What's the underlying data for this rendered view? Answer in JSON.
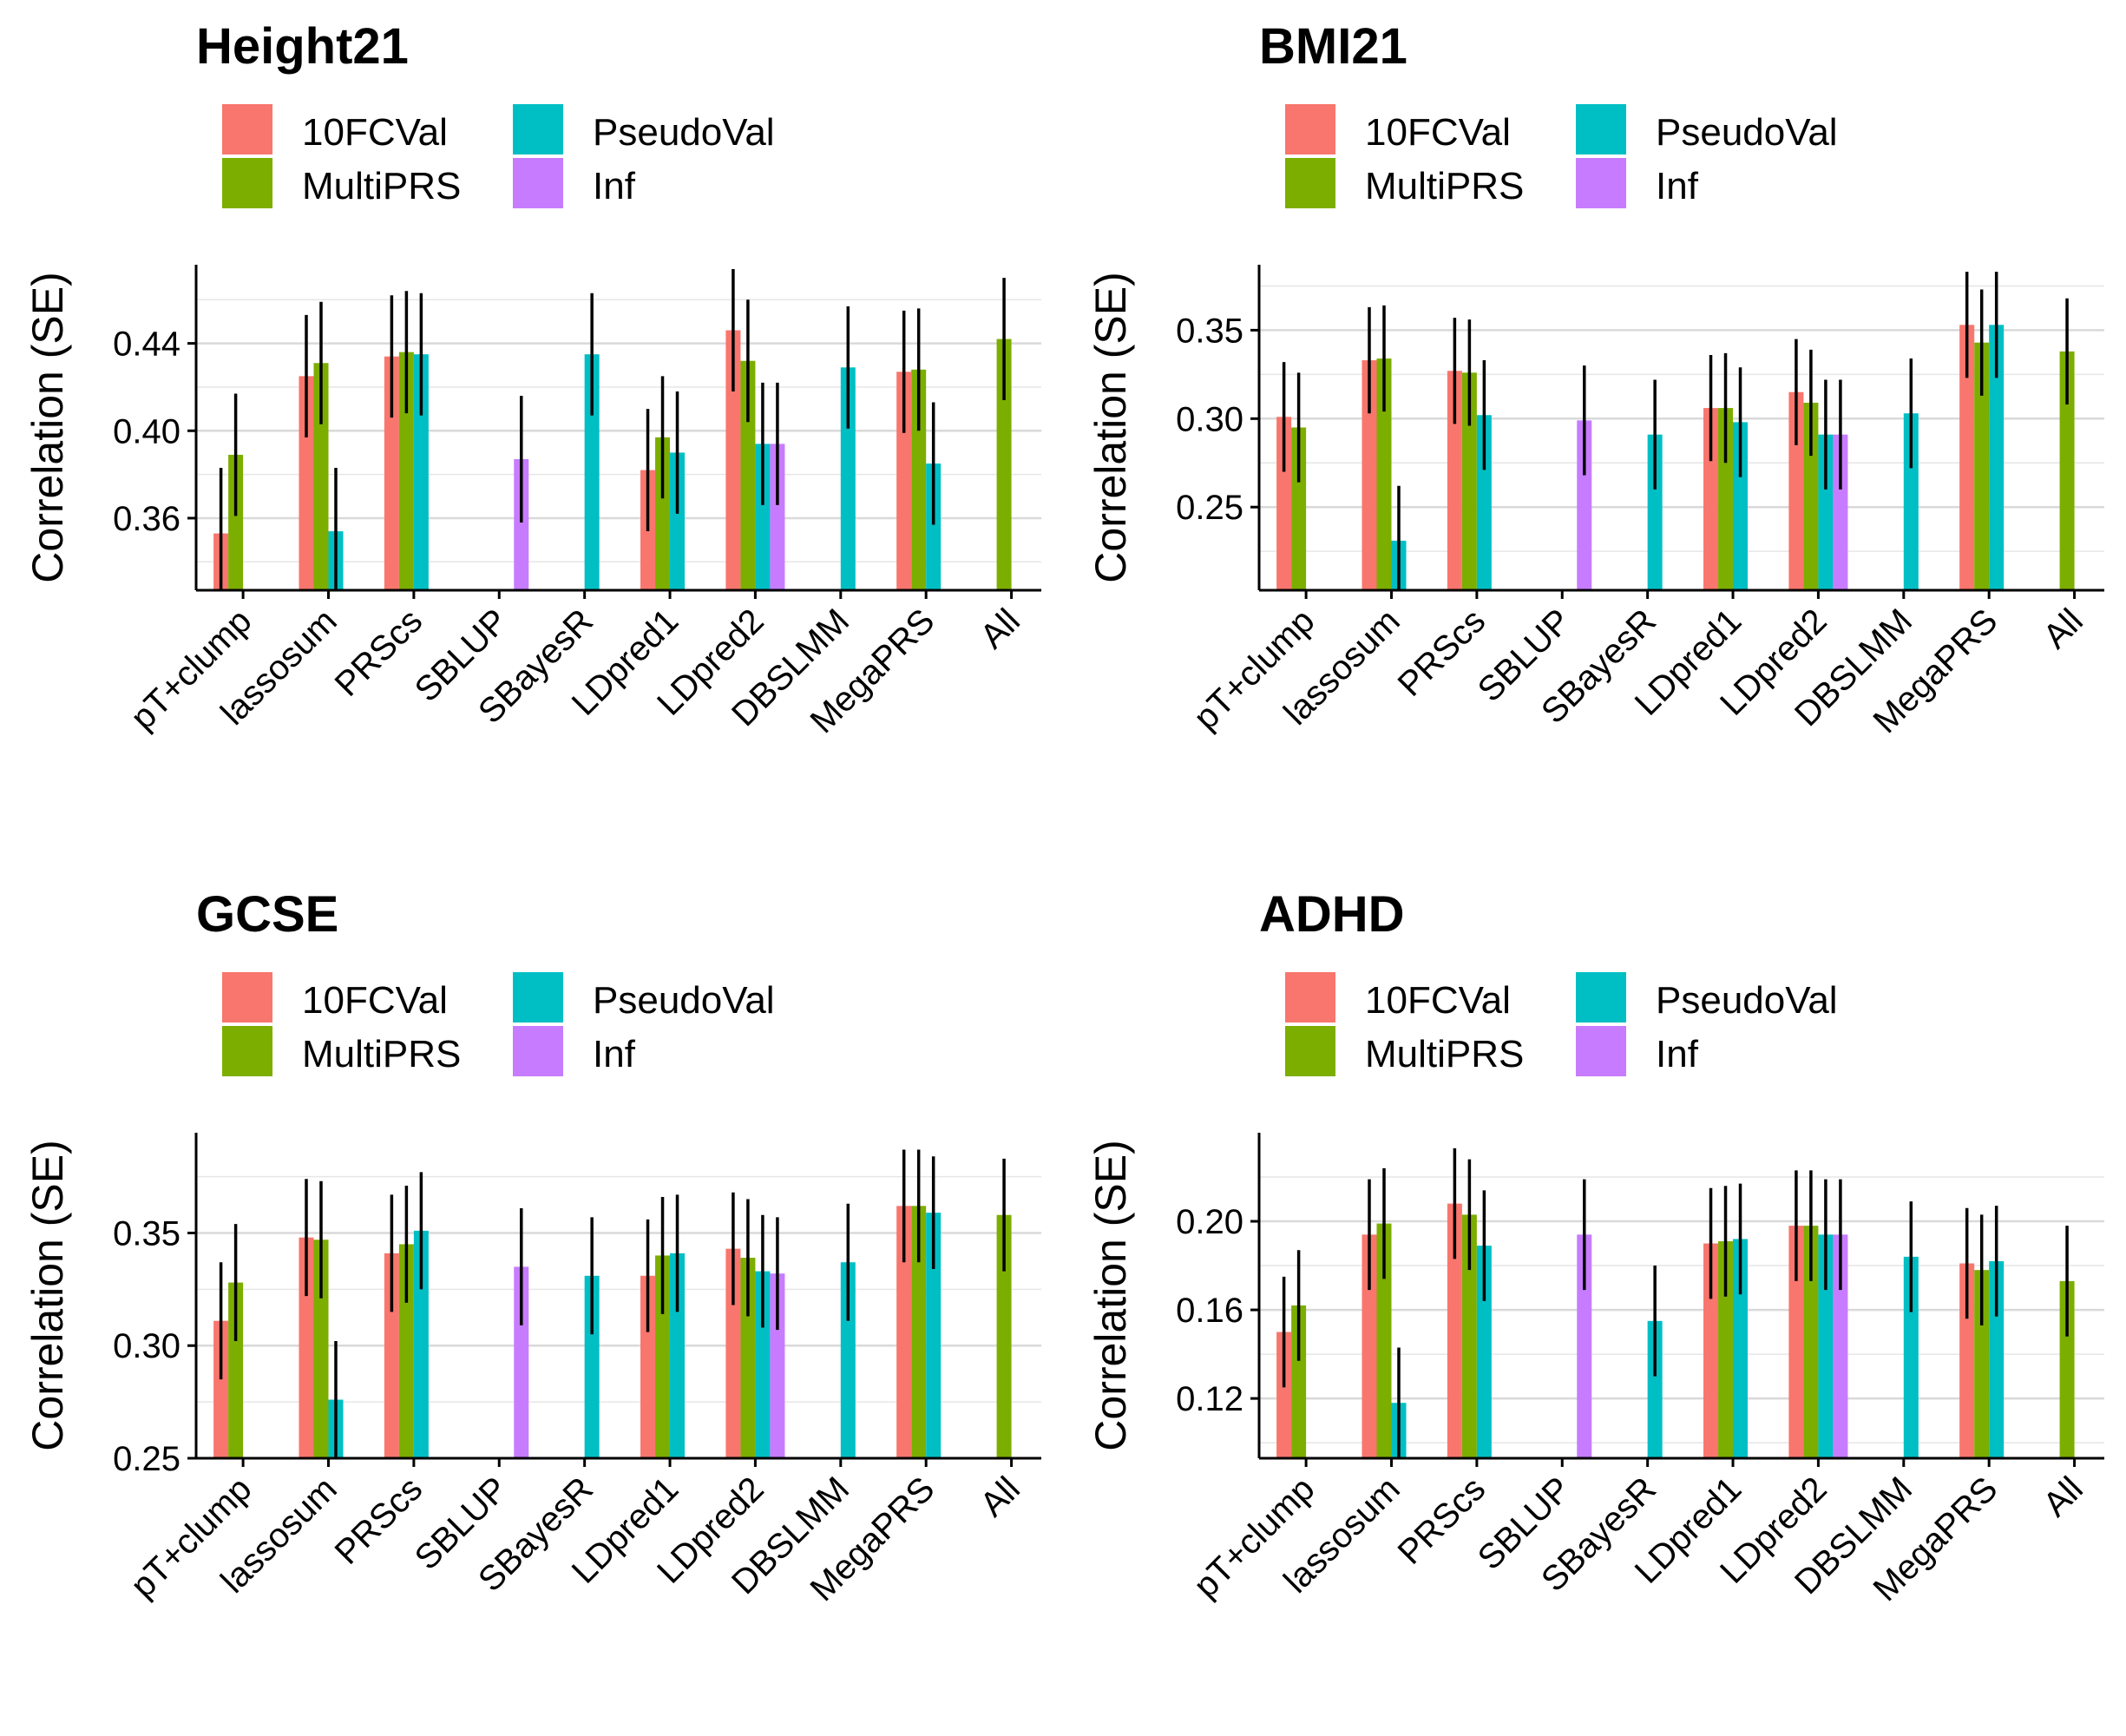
{
  "figure": {
    "colors": {
      "10FCVal": "#F8766D",
      "MultiPRS": "#7CAE00",
      "PseudoVal": "#00BFC4",
      "Inf": "#C77CFF"
    },
    "legend": [
      "10FCVal",
      "MultiPRS",
      "PseudoVal",
      "Inf"
    ]
  },
  "chart_data": [
    {
      "type": "bar",
      "title": "Height21",
      "xlabel": "",
      "ylabel": "Correlation (SE)",
      "ylim": [
        0.327,
        0.476
      ],
      "yticks": [
        "0.36",
        "0.40",
        "0.44"
      ],
      "ytick_values": [
        0.36,
        0.4,
        0.44
      ],
      "minor_gridlines": [
        0.34,
        0.38,
        0.42,
        0.46
      ],
      "categories": [
        "pT+clump",
        "lassosum",
        "PRScs",
        "SBLUP",
        "SBayesR",
        "LDpred1",
        "LDpred2",
        "DBSLMM",
        "MegaPRS",
        "All"
      ],
      "series": [
        {
          "name": "10FCVal",
          "values": [
            0.353,
            0.425,
            0.434,
            null,
            null,
            0.382,
            0.446,
            null,
            0.427,
            null
          ],
          "se": [
            0.03,
            0.028,
            0.028,
            null,
            null,
            0.028,
            0.028,
            null,
            0.028,
            null
          ]
        },
        {
          "name": "MultiPRS",
          "values": [
            0.389,
            0.431,
            0.436,
            null,
            null,
            0.397,
            0.432,
            null,
            0.428,
            0.442
          ],
          "se": [
            0.028,
            0.028,
            0.028,
            null,
            null,
            0.028,
            0.028,
            null,
            0.028,
            0.028
          ]
        },
        {
          "name": "PseudoVal",
          "values": [
            null,
            0.354,
            0.435,
            null,
            0.435,
            0.39,
            0.394,
            0.429,
            0.385,
            null
          ],
          "se": [
            null,
            0.029,
            0.028,
            null,
            0.028,
            0.028,
            0.028,
            0.028,
            0.028,
            null
          ]
        },
        {
          "name": "Inf",
          "values": [
            null,
            null,
            null,
            0.387,
            null,
            null,
            0.394,
            null,
            null,
            null
          ],
          "se": [
            null,
            null,
            null,
            0.029,
            null,
            null,
            0.028,
            null,
            null,
            null
          ]
        }
      ]
    },
    {
      "type": "bar",
      "title": "BMI21",
      "xlabel": "",
      "ylabel": "Correlation (SE)",
      "ylim": [
        0.203,
        0.387
      ],
      "yticks": [
        "0.25",
        "0.30",
        "0.35"
      ],
      "ytick_values": [
        0.25,
        0.3,
        0.35
      ],
      "minor_gridlines": [
        0.225,
        0.275,
        0.325,
        0.375
      ],
      "categories": [
        "pT+clump",
        "lassosum",
        "PRScs",
        "SBLUP",
        "SBayesR",
        "LDpred1",
        "LDpred2",
        "DBSLMM",
        "MegaPRS",
        "All"
      ],
      "series": [
        {
          "name": "10FCVal",
          "values": [
            0.301,
            0.333,
            0.327,
            null,
            null,
            0.306,
            0.315,
            null,
            0.353,
            null
          ],
          "se": [
            0.031,
            0.03,
            0.03,
            null,
            null,
            0.03,
            0.03,
            null,
            0.03,
            null
          ]
        },
        {
          "name": "MultiPRS",
          "values": [
            0.295,
            0.334,
            0.326,
            null,
            null,
            0.306,
            0.309,
            null,
            0.343,
            0.338
          ],
          "se": [
            0.031,
            0.03,
            0.03,
            null,
            null,
            0.031,
            0.03,
            null,
            0.03,
            0.03
          ]
        },
        {
          "name": "PseudoVal",
          "values": [
            null,
            0.231,
            0.302,
            null,
            0.291,
            0.298,
            0.291,
            0.303,
            0.353,
            null
          ],
          "se": [
            null,
            0.031,
            0.031,
            null,
            0.031,
            0.031,
            0.031,
            0.031,
            0.03,
            null
          ]
        },
        {
          "name": "Inf",
          "values": [
            null,
            null,
            null,
            0.299,
            null,
            null,
            0.291,
            null,
            null,
            null
          ],
          "se": [
            null,
            null,
            null,
            0.031,
            null,
            null,
            0.031,
            null,
            null,
            null
          ]
        }
      ]
    },
    {
      "type": "bar",
      "title": "GCSE",
      "xlabel": "",
      "ylabel": "Correlation (SE)",
      "ylim": [
        0.25,
        0.3945
      ],
      "yticks": [
        "0.25",
        "0.30",
        "0.35"
      ],
      "ytick_values": [
        0.25,
        0.3,
        0.35
      ],
      "minor_gridlines": [
        0.275,
        0.325,
        0.375
      ],
      "categories": [
        "pT+clump",
        "lassosum",
        "PRScs",
        "SBLUP",
        "SBayesR",
        "LDpred1",
        "LDpred2",
        "DBSLMM",
        "MegaPRS",
        "All"
      ],
      "series": [
        {
          "name": "10FCVal",
          "values": [
            0.311,
            0.348,
            0.341,
            null,
            null,
            0.331,
            0.343,
            null,
            0.362,
            null
          ],
          "se": [
            0.026,
            0.026,
            0.026,
            null,
            null,
            0.025,
            0.025,
            null,
            0.025,
            null
          ]
        },
        {
          "name": "MultiPRS",
          "values": [
            0.328,
            0.347,
            0.345,
            null,
            null,
            0.34,
            0.339,
            null,
            0.362,
            0.358
          ],
          "se": [
            0.026,
            0.026,
            0.026,
            null,
            null,
            0.026,
            0.026,
            null,
            0.025,
            0.025
          ]
        },
        {
          "name": "PseudoVal",
          "values": [
            null,
            0.276,
            0.351,
            null,
            0.331,
            0.341,
            0.333,
            0.337,
            0.359,
            null
          ],
          "se": [
            null,
            0.026,
            0.026,
            null,
            0.026,
            0.026,
            0.025,
            0.026,
            0.025,
            null
          ]
        },
        {
          "name": "Inf",
          "values": [
            null,
            null,
            null,
            0.335,
            null,
            null,
            0.332,
            null,
            null,
            null
          ],
          "se": [
            null,
            null,
            null,
            0.026,
            null,
            null,
            0.025,
            null,
            null,
            null
          ]
        }
      ]
    },
    {
      "type": "bar",
      "title": "ADHD",
      "xlabel": "",
      "ylabel": "Correlation (SE)",
      "ylim": [
        0.093,
        0.24
      ],
      "yticks": [
        "0.12",
        "0.16",
        "0.20"
      ],
      "ytick_values": [
        0.12,
        0.16,
        0.2
      ],
      "minor_gridlines": [
        0.1,
        0.14,
        0.18,
        0.22
      ],
      "categories": [
        "pT+clump",
        "lassosum",
        "PRScs",
        "SBLUP",
        "SBayesR",
        "LDpred1",
        "LDpred2",
        "DBSLMM",
        "MegaPRS",
        "All"
      ],
      "series": [
        {
          "name": "10FCVal",
          "values": [
            0.15,
            0.194,
            0.208,
            null,
            null,
            0.19,
            0.198,
            null,
            0.181,
            null
          ],
          "se": [
            0.025,
            0.025,
            0.025,
            null,
            null,
            0.025,
            0.025,
            null,
            0.025,
            null
          ]
        },
        {
          "name": "MultiPRS",
          "values": [
            0.162,
            0.199,
            0.203,
            null,
            null,
            0.191,
            0.198,
            null,
            0.178,
            0.173
          ],
          "se": [
            0.025,
            0.025,
            0.025,
            null,
            null,
            0.025,
            0.025,
            null,
            0.025,
            0.025
          ]
        },
        {
          "name": "PseudoVal",
          "values": [
            null,
            0.118,
            0.189,
            null,
            0.155,
            0.192,
            0.194,
            0.184,
            0.182,
            null
          ],
          "se": [
            null,
            0.025,
            0.025,
            null,
            0.025,
            0.025,
            0.025,
            0.025,
            0.025,
            null
          ]
        },
        {
          "name": "Inf",
          "values": [
            null,
            null,
            null,
            0.194,
            null,
            null,
            0.194,
            null,
            null,
            null
          ],
          "se": [
            null,
            null,
            null,
            0.025,
            null,
            null,
            0.025,
            null,
            null,
            null
          ]
        }
      ]
    }
  ]
}
